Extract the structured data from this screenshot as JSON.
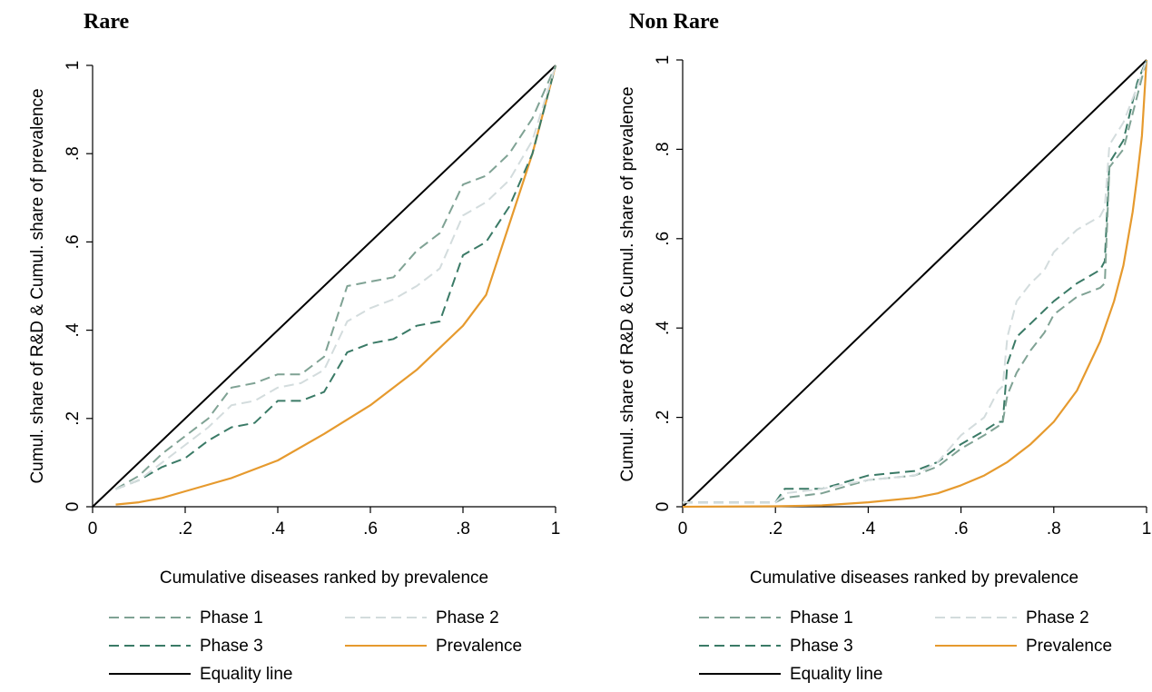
{
  "chart_data": [
    {
      "type": "line",
      "title": "Rare",
      "xlabel": "Cumulative diseases ranked by prevalence",
      "ylabel": "Cumul. share of R&D & Cumul. share of prevalence",
      "xlim": [
        0,
        1
      ],
      "ylim": [
        0,
        1
      ],
      "xticks": [
        0,
        0.2,
        0.4,
        0.6,
        0.8,
        1
      ],
      "xtick_labels": [
        "0",
        ".2",
        ".4",
        ".6",
        ".8",
        "1"
      ],
      "yticks": [
        0,
        0.2,
        0.4,
        0.6,
        0.8,
        1
      ],
      "ytick_labels": [
        "0",
        ".2",
        ".4",
        ".6",
        ".8",
        "1"
      ],
      "grid": false,
      "legend_position": "bottom",
      "series": [
        {
          "name": "Phase 1",
          "color": "#7fa294",
          "dash": "dashed",
          "x": [
            0.05,
            0.1,
            0.15,
            0.2,
            0.25,
            0.3,
            0.35,
            0.4,
            0.45,
            0.5,
            0.55,
            0.6,
            0.65,
            0.7,
            0.75,
            0.8,
            0.85,
            0.9,
            0.95,
            1.0
          ],
          "y": [
            0.04,
            0.07,
            0.12,
            0.16,
            0.2,
            0.27,
            0.28,
            0.3,
            0.3,
            0.34,
            0.5,
            0.51,
            0.52,
            0.58,
            0.62,
            0.73,
            0.75,
            0.8,
            0.88,
            1.0
          ]
        },
        {
          "name": "Phase 2",
          "color": "#d3dcdd",
          "dash": "dashed",
          "x": [
            0.05,
            0.1,
            0.15,
            0.2,
            0.25,
            0.3,
            0.35,
            0.4,
            0.45,
            0.5,
            0.55,
            0.6,
            0.65,
            0.7,
            0.75,
            0.8,
            0.85,
            0.9,
            0.95,
            1.0
          ],
          "y": [
            0.04,
            0.06,
            0.1,
            0.14,
            0.18,
            0.23,
            0.24,
            0.27,
            0.28,
            0.31,
            0.42,
            0.45,
            0.47,
            0.5,
            0.54,
            0.66,
            0.69,
            0.74,
            0.83,
            1.0
          ]
        },
        {
          "name": "Phase 3",
          "color": "#3a7a66",
          "dash": "dashed",
          "x": [
            0.05,
            0.1,
            0.15,
            0.2,
            0.25,
            0.3,
            0.35,
            0.4,
            0.45,
            0.5,
            0.55,
            0.6,
            0.65,
            0.7,
            0.75,
            0.8,
            0.85,
            0.9,
            0.95,
            1.0
          ],
          "y": [
            0.04,
            0.06,
            0.09,
            0.11,
            0.15,
            0.18,
            0.19,
            0.24,
            0.24,
            0.26,
            0.35,
            0.37,
            0.38,
            0.41,
            0.42,
            0.57,
            0.6,
            0.68,
            0.8,
            1.0
          ]
        },
        {
          "name": "Prevalence",
          "color": "#e69a2e",
          "dash": "solid",
          "x": [
            0.05,
            0.1,
            0.15,
            0.2,
            0.3,
            0.4,
            0.5,
            0.6,
            0.7,
            0.8,
            0.85,
            0.9,
            0.95,
            1.0
          ],
          "y": [
            0.005,
            0.01,
            0.02,
            0.035,
            0.065,
            0.105,
            0.165,
            0.23,
            0.31,
            0.41,
            0.48,
            0.64,
            0.8,
            1.0
          ]
        },
        {
          "name": "Equality line",
          "color": "#000000",
          "dash": "solid",
          "x": [
            0,
            1
          ],
          "y": [
            0,
            1
          ]
        }
      ]
    },
    {
      "type": "line",
      "title": "Non Rare",
      "xlabel": "Cumulative diseases ranked by prevalence",
      "ylabel": "Cumul. share of R&D & Cumul. share of prevalence",
      "xlim": [
        0,
        1
      ],
      "ylim": [
        0,
        1
      ],
      "xticks": [
        0,
        0.2,
        0.4,
        0.6,
        0.8,
        1
      ],
      "xtick_labels": [
        "0",
        ".2",
        ".4",
        ".6",
        ".8",
        "1"
      ],
      "yticks": [
        0,
        0.2,
        0.4,
        0.6,
        0.8,
        1
      ],
      "ytick_labels": [
        "0",
        ".2",
        ".4",
        ".6",
        ".8",
        "1"
      ],
      "grid": false,
      "legend_position": "bottom",
      "series": [
        {
          "name": "Phase 1",
          "color": "#7fa294",
          "dash": "dashed",
          "x": [
            0.0,
            0.1,
            0.2,
            0.22,
            0.3,
            0.4,
            0.5,
            0.55,
            0.6,
            0.65,
            0.68,
            0.69,
            0.7,
            0.72,
            0.75,
            0.78,
            0.8,
            0.85,
            0.9,
            0.91,
            0.92,
            0.95,
            0.98,
            1.0
          ],
          "y": [
            0.01,
            0.01,
            0.01,
            0.02,
            0.03,
            0.06,
            0.07,
            0.09,
            0.13,
            0.16,
            0.18,
            0.19,
            0.25,
            0.3,
            0.35,
            0.39,
            0.43,
            0.47,
            0.49,
            0.5,
            0.76,
            0.8,
            0.92,
            1.0
          ]
        },
        {
          "name": "Phase 2",
          "color": "#d3dcdd",
          "dash": "dashed",
          "x": [
            0.0,
            0.1,
            0.2,
            0.22,
            0.3,
            0.4,
            0.5,
            0.55,
            0.6,
            0.65,
            0.68,
            0.69,
            0.7,
            0.72,
            0.75,
            0.78,
            0.8,
            0.85,
            0.9,
            0.91,
            0.92,
            0.95,
            0.98,
            1.0
          ],
          "y": [
            0.01,
            0.01,
            0.01,
            0.03,
            0.04,
            0.06,
            0.07,
            0.1,
            0.16,
            0.2,
            0.26,
            0.27,
            0.38,
            0.46,
            0.5,
            0.53,
            0.57,
            0.62,
            0.65,
            0.67,
            0.81,
            0.86,
            0.94,
            1.0
          ]
        },
        {
          "name": "Phase 3",
          "color": "#3a7a66",
          "dash": "dashed",
          "x": [
            0.0,
            0.1,
            0.2,
            0.22,
            0.3,
            0.4,
            0.5,
            0.55,
            0.6,
            0.65,
            0.68,
            0.69,
            0.7,
            0.72,
            0.75,
            0.78,
            0.8,
            0.85,
            0.9,
            0.91,
            0.92,
            0.95,
            0.98,
            1.0
          ],
          "y": [
            0.01,
            0.01,
            0.01,
            0.04,
            0.04,
            0.07,
            0.08,
            0.1,
            0.14,
            0.17,
            0.19,
            0.19,
            0.32,
            0.38,
            0.41,
            0.44,
            0.46,
            0.5,
            0.53,
            0.55,
            0.77,
            0.82,
            0.95,
            1.0
          ]
        },
        {
          "name": "Prevalence",
          "color": "#e69a2e",
          "dash": "solid",
          "x": [
            0.0,
            0.2,
            0.3,
            0.4,
            0.5,
            0.55,
            0.6,
            0.65,
            0.7,
            0.75,
            0.8,
            0.85,
            0.9,
            0.93,
            0.95,
            0.97,
            0.98,
            0.99,
            1.0
          ],
          "y": [
            0.0,
            0.001,
            0.003,
            0.01,
            0.02,
            0.03,
            0.048,
            0.07,
            0.1,
            0.14,
            0.19,
            0.26,
            0.37,
            0.46,
            0.54,
            0.66,
            0.74,
            0.83,
            1.0
          ]
        },
        {
          "name": "Equality line",
          "color": "#000000",
          "dash": "solid",
          "x": [
            0,
            1
          ],
          "y": [
            0,
            1
          ]
        }
      ]
    }
  ]
}
